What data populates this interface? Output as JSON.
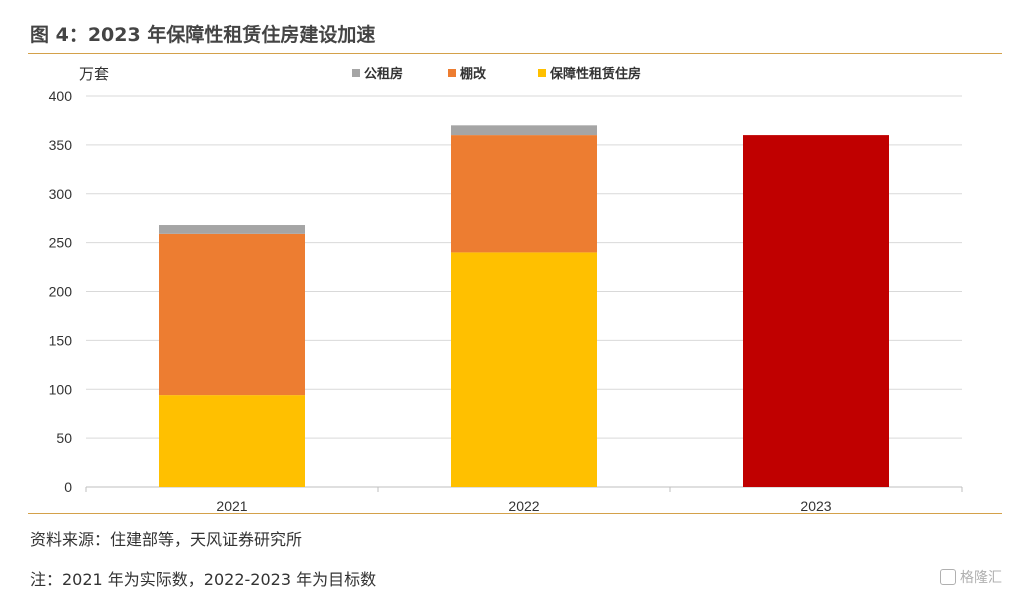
{
  "title": "图 4：2023 年保障性租赁住房建设加速",
  "source": "资料来源：住建部等，天风证券研究所",
  "note": "注：2021 年为实际数，2022-2023 年为目标数",
  "watermark": "格隆汇",
  "chart_data": {
    "type": "bar",
    "stacked": true,
    "ylabel": "万套",
    "ylim": [
      0,
      400
    ],
    "yticks": [
      0,
      50,
      100,
      150,
      200,
      250,
      300,
      350,
      400
    ],
    "grid": true,
    "legend_position": "top",
    "categories": [
      "2021",
      "2022",
      "2023"
    ],
    "legend": [
      {
        "name": "公租房",
        "color": "#a5a5a5"
      },
      {
        "name": "棚改",
        "color": "#ed7d31"
      },
      {
        "name": "保障性租赁住房",
        "color": "#ffc000"
      }
    ],
    "series": [
      {
        "name": "保障性租赁住房",
        "color": "#ffc000",
        "values": [
          94,
          240,
          null
        ]
      },
      {
        "name": "棚改",
        "color": "#ed7d31",
        "values": [
          165,
          120,
          null
        ]
      },
      {
        "name": "公租房",
        "color": "#a5a5a5",
        "values": [
          9,
          10,
          null
        ]
      },
      {
        "name": "2023",
        "color": "#c00000",
        "values": [
          null,
          null,
          360
        ]
      }
    ]
  }
}
